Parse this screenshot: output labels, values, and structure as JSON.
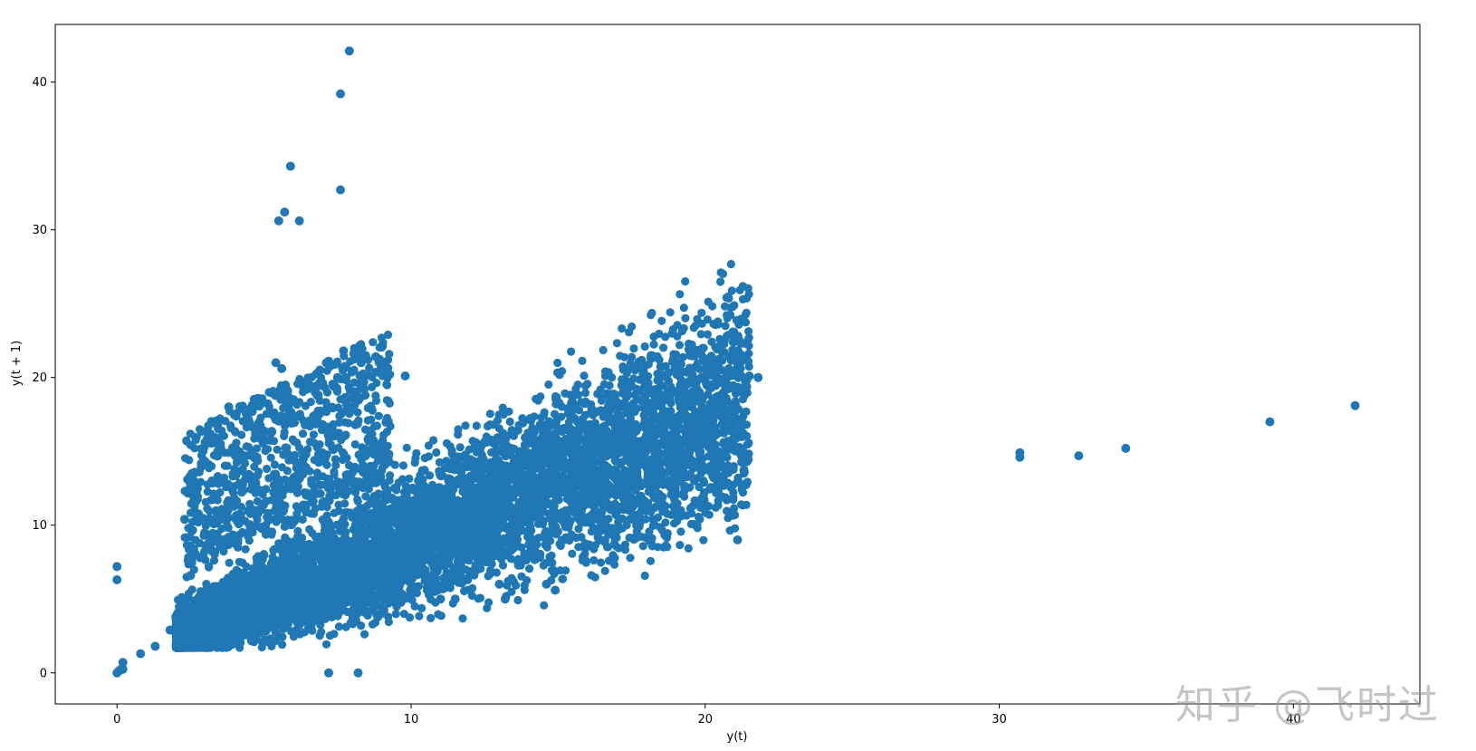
{
  "chart_data": {
    "type": "scatter",
    "title": "",
    "xlabel": "y(t)",
    "ylabel": "y(t + 1)",
    "xlim": [
      -2.1,
      44.3
    ],
    "ylim": [
      -2.1,
      43.9
    ],
    "xticks": [
      0,
      10,
      20,
      30,
      40
    ],
    "yticks": [
      0,
      10,
      20,
      30,
      40
    ],
    "grid": false,
    "legend": "none",
    "marker_color": "#1f77b4",
    "main_cloud_note_omitted": true,
    "points": [
      [
        0.0,
        0.0
      ],
      [
        0.05,
        0.1
      ],
      [
        0.1,
        0.2
      ],
      [
        0.2,
        0.25
      ],
      [
        0.2,
        0.7
      ],
      [
        0.0,
        6.3
      ],
      [
        0.0,
        7.2
      ],
      [
        0.8,
        1.3
      ],
      [
        1.3,
        1.8
      ],
      [
        1.8,
        2.9
      ],
      [
        2.0,
        3.8
      ],
      [
        2.2,
        5.1
      ],
      [
        2.5,
        6.6
      ],
      [
        2.3,
        10.4
      ],
      [
        2.6,
        11.6
      ],
      [
        3.0,
        14.3
      ],
      [
        3.3,
        15.8
      ],
      [
        3.8,
        18.0
      ],
      [
        4.2,
        17.9
      ],
      [
        4.6,
        17.7
      ],
      [
        5.4,
        21.0
      ],
      [
        5.6,
        20.6
      ],
      [
        5.8,
        19.1
      ],
      [
        6.0,
        18.5
      ],
      [
        6.4,
        17.0
      ],
      [
        6.9,
        20.5
      ],
      [
        7.2,
        21.1
      ],
      [
        7.5,
        20.0
      ],
      [
        7.7,
        21.8
      ],
      [
        8.3,
        21.0
      ],
      [
        8.8,
        21.4
      ],
      [
        8.4,
        19.2
      ],
      [
        9.8,
        20.1
      ],
      [
        7.8,
        18.2
      ],
      [
        8.1,
        16.8
      ],
      [
        5.5,
        30.6
      ],
      [
        5.7,
        31.2
      ],
      [
        5.9,
        34.3
      ],
      [
        6.2,
        30.6
      ],
      [
        7.6,
        32.7
      ],
      [
        7.6,
        39.2
      ],
      [
        7.9,
        42.1
      ],
      [
        7.2,
        0.0
      ],
      [
        8.2,
        0.0
      ],
      [
        11.0,
        5.0
      ],
      [
        11.5,
        5.0
      ],
      [
        13.0,
        6.0
      ],
      [
        13.2,
        5.0
      ],
      [
        14.6,
        6.0
      ],
      [
        14.9,
        5.6
      ],
      [
        21.1,
        9.0
      ],
      [
        21.0,
        18.0
      ],
      [
        21.5,
        20.1
      ],
      [
        21.8,
        20.0
      ],
      [
        20.3,
        18.4
      ],
      [
        20.6,
        18.0
      ],
      [
        19.8,
        19.0
      ],
      [
        20.2,
        19.5
      ],
      [
        30.7,
        14.6
      ],
      [
        30.7,
        14.9
      ],
      [
        32.7,
        14.7
      ],
      [
        34.3,
        15.2
      ],
      [
        39.2,
        17.0
      ],
      [
        42.1,
        18.1
      ]
    ]
  },
  "watermark": "知乎 @飞时过"
}
